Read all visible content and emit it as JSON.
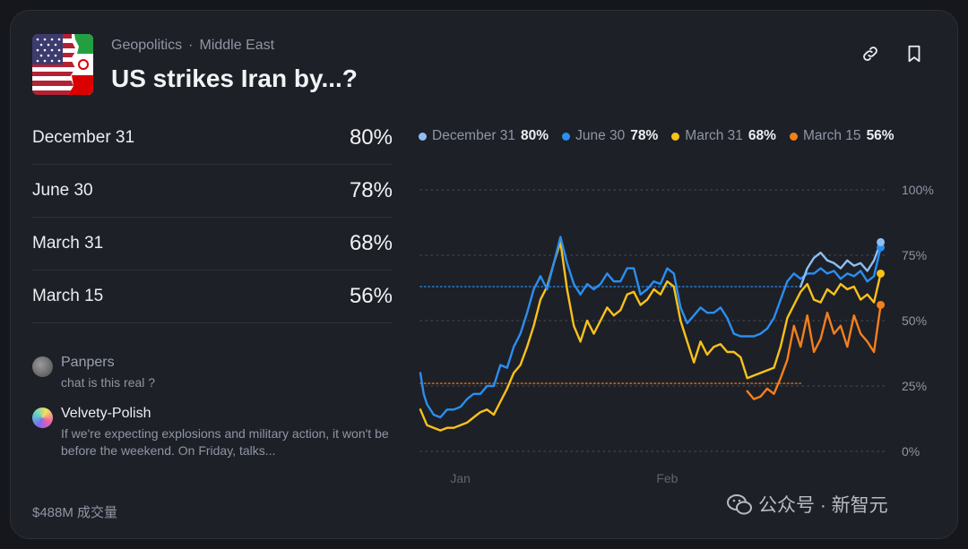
{
  "header": {
    "category": "Geopolitics",
    "subcategory": "Middle East",
    "title": "US strikes Iran by...?"
  },
  "outcomes": [
    {
      "label": "December 31",
      "pct": "80%"
    },
    {
      "label": "June 30",
      "pct": "78%"
    },
    {
      "label": "March 31",
      "pct": "68%"
    },
    {
      "label": "March 15",
      "pct": "56%"
    }
  ],
  "comments": [
    {
      "user": "Panpers",
      "text": "chat is this real ?"
    },
    {
      "user": "Velvety-Polish",
      "text": "If we're expecting explosions and military action, it won't be before the weekend. On Friday, talks..."
    }
  ],
  "volume": "$488M 成交量",
  "watermark": "公众号 · 新智元",
  "colors": {
    "background": "#1d2027",
    "december31": "#8cc0f2",
    "june30": "#2b8ef0",
    "march31": "#f8c21a",
    "march15": "#f57f1c"
  },
  "icons": [
    "link-icon",
    "bookmark-icon"
  ],
  "chart_data": {
    "type": "line",
    "x_unit": "days since Dec 26",
    "x_ticks": [
      {
        "x": 6,
        "label": "Jan"
      },
      {
        "x": 37,
        "label": "Feb"
      }
    ],
    "xlim": [
      0,
      70
    ],
    "ylim": [
      0,
      100
    ],
    "y_ticks": [
      {
        "y": 0,
        "label": "0%"
      },
      {
        "y": 25,
        "label": "25%"
      },
      {
        "y": 50,
        "label": "50%"
      },
      {
        "y": 75,
        "label": "75%"
      },
      {
        "y": 100,
        "label": "100%"
      }
    ],
    "grid": true,
    "legend_position": "top",
    "series": [
      {
        "name": "December 31",
        "value_label": "80%",
        "color": "#8cc0f2",
        "values": [
          [
            57,
            63
          ],
          [
            58,
            70
          ],
          [
            59,
            74
          ],
          [
            60,
            76
          ],
          [
            61,
            73
          ],
          [
            62,
            72
          ],
          [
            63,
            70
          ],
          [
            64,
            73
          ],
          [
            65,
            71
          ],
          [
            66,
            72
          ],
          [
            67,
            69
          ],
          [
            68,
            73
          ],
          [
            69,
            80
          ]
        ]
      },
      {
        "name": "June 30",
        "value_label": "78%",
        "color": "#2b8ef0",
        "values": [
          [
            0,
            30
          ],
          [
            0.5,
            22
          ],
          [
            1,
            18
          ],
          [
            2,
            14
          ],
          [
            3,
            13
          ],
          [
            4,
            16
          ],
          [
            5,
            16
          ],
          [
            6,
            17
          ],
          [
            7,
            20
          ],
          [
            8,
            22
          ],
          [
            9,
            22
          ],
          [
            10,
            25
          ],
          [
            11,
            25
          ],
          [
            12,
            33
          ],
          [
            13,
            32
          ],
          [
            14,
            40
          ],
          [
            15,
            45
          ],
          [
            16,
            53
          ],
          [
            17,
            62
          ],
          [
            18,
            67
          ],
          [
            19,
            62
          ],
          [
            20,
            72
          ],
          [
            21,
            82
          ],
          [
            22,
            72
          ],
          [
            23,
            64
          ],
          [
            24,
            60
          ],
          [
            25,
            64
          ],
          [
            26,
            62
          ],
          [
            27,
            64
          ],
          [
            28,
            68
          ],
          [
            29,
            65
          ],
          [
            30,
            65
          ],
          [
            31,
            70
          ],
          [
            32,
            70
          ],
          [
            33,
            60
          ],
          [
            34,
            62
          ],
          [
            35,
            65
          ],
          [
            36,
            64
          ],
          [
            37,
            70
          ],
          [
            38,
            68
          ],
          [
            39,
            55
          ],
          [
            40,
            49
          ],
          [
            41,
            52
          ],
          [
            42,
            55
          ],
          [
            43,
            53
          ],
          [
            44,
            53
          ],
          [
            45,
            55
          ],
          [
            46,
            51
          ],
          [
            47,
            45
          ],
          [
            48,
            44
          ],
          [
            49,
            44
          ],
          [
            50,
            44
          ],
          [
            51,
            45
          ],
          [
            52,
            47
          ],
          [
            53,
            51
          ],
          [
            54,
            58
          ],
          [
            55,
            65
          ],
          [
            56,
            68
          ],
          [
            57,
            66
          ],
          [
            58,
            68
          ],
          [
            59,
            68
          ],
          [
            60,
            70
          ],
          [
            61,
            68
          ],
          [
            62,
            69
          ],
          [
            63,
            66
          ],
          [
            64,
            68
          ],
          [
            65,
            67
          ],
          [
            66,
            69
          ],
          [
            67,
            65
          ],
          [
            68,
            67
          ],
          [
            69,
            78
          ]
        ]
      },
      {
        "name": "March 31",
        "value_label": "68%",
        "color": "#f8c21a",
        "values": [
          [
            0,
            16
          ],
          [
            1,
            10
          ],
          [
            2,
            9
          ],
          [
            3,
            8
          ],
          [
            4,
            9
          ],
          [
            5,
            9
          ],
          [
            6,
            10
          ],
          [
            7,
            11
          ],
          [
            8,
            13
          ],
          [
            9,
            15
          ],
          [
            10,
            16
          ],
          [
            11,
            14
          ],
          [
            12,
            19
          ],
          [
            13,
            24
          ],
          [
            14,
            30
          ],
          [
            15,
            33
          ],
          [
            16,
            40
          ],
          [
            17,
            48
          ],
          [
            18,
            58
          ],
          [
            19,
            63
          ],
          [
            20,
            72
          ],
          [
            21,
            80
          ],
          [
            22,
            62
          ],
          [
            23,
            48
          ],
          [
            24,
            42
          ],
          [
            25,
            50
          ],
          [
            26,
            45
          ],
          [
            27,
            50
          ],
          [
            28,
            55
          ],
          [
            29,
            52
          ],
          [
            30,
            54
          ],
          [
            31,
            60
          ],
          [
            32,
            61
          ],
          [
            33,
            56
          ],
          [
            34,
            58
          ],
          [
            35,
            62
          ],
          [
            36,
            60
          ],
          [
            37,
            65
          ],
          [
            38,
            63
          ],
          [
            39,
            50
          ],
          [
            40,
            42
          ],
          [
            41,
            34
          ],
          [
            42,
            42
          ],
          [
            43,
            37
          ],
          [
            44,
            40
          ],
          [
            45,
            41
          ],
          [
            46,
            38
          ],
          [
            47,
            38
          ],
          [
            48,
            36
          ],
          [
            49,
            28
          ],
          [
            50,
            29
          ],
          [
            51,
            30
          ],
          [
            52,
            31
          ],
          [
            53,
            32
          ],
          [
            54,
            40
          ],
          [
            55,
            51
          ],
          [
            56,
            56
          ],
          [
            57,
            61
          ],
          [
            58,
            64
          ],
          [
            59,
            58
          ],
          [
            60,
            57
          ],
          [
            61,
            62
          ],
          [
            62,
            60
          ],
          [
            63,
            64
          ],
          [
            64,
            62
          ],
          [
            65,
            63
          ],
          [
            66,
            58
          ],
          [
            67,
            60
          ],
          [
            68,
            57
          ],
          [
            69,
            68
          ]
        ]
      },
      {
        "name": "March 15",
        "value_label": "56%",
        "color": "#f57f1c",
        "values": [
          [
            49,
            23
          ],
          [
            50,
            20
          ],
          [
            51,
            21
          ],
          [
            52,
            24
          ],
          [
            53,
            22
          ],
          [
            54,
            28
          ],
          [
            55,
            35
          ],
          [
            56,
            48
          ],
          [
            57,
            40
          ],
          [
            58,
            52
          ],
          [
            59,
            38
          ],
          [
            60,
            43
          ],
          [
            61,
            53
          ],
          [
            62,
            45
          ],
          [
            63,
            48
          ],
          [
            64,
            40
          ],
          [
            65,
            52
          ],
          [
            66,
            45
          ],
          [
            67,
            42
          ],
          [
            68,
            38
          ],
          [
            69,
            56
          ]
        ]
      }
    ],
    "reference_lines": [
      {
        "series": "June 30",
        "y": 63
      },
      {
        "series": "March 15",
        "y": 26
      }
    ]
  }
}
